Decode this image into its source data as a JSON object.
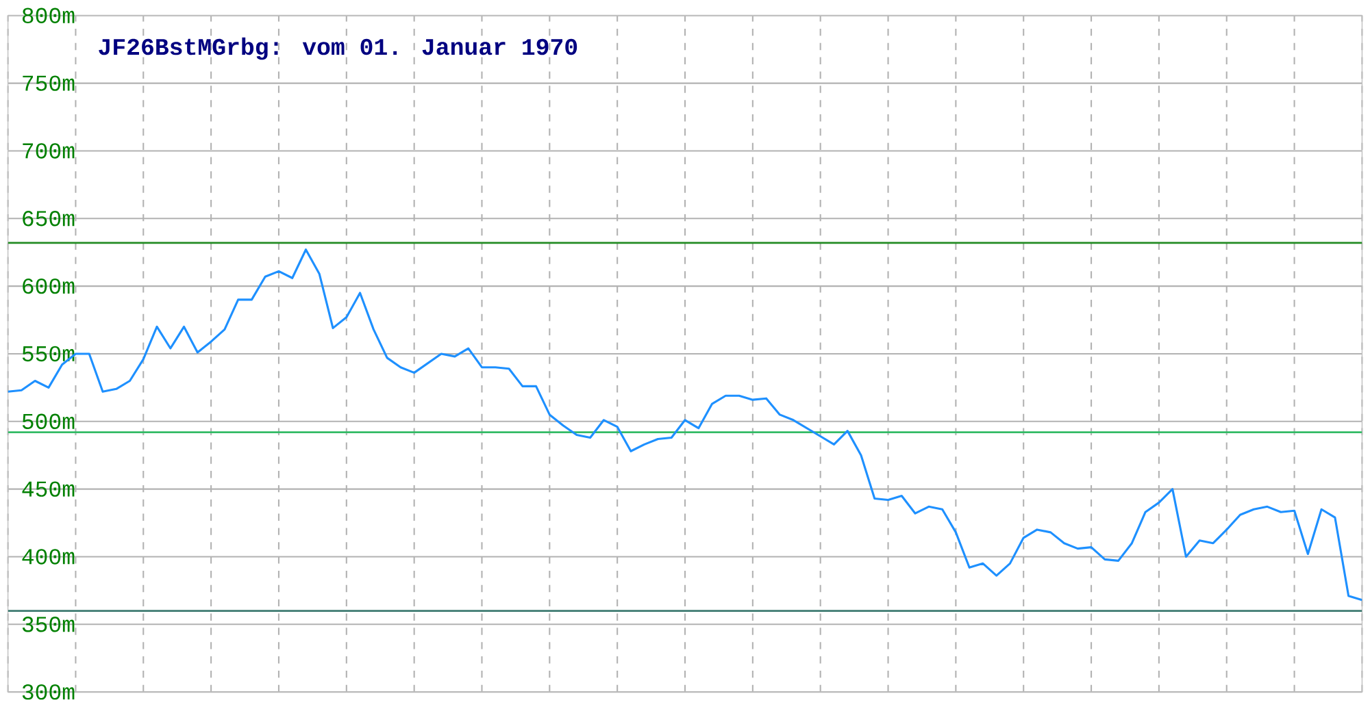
{
  "chart_data": {
    "type": "line",
    "title": "JF26BstMGrbg: vom 01. Januar 1970",
    "categories": [
      null,
      null,
      null,
      null,
      null,
      null,
      null,
      null,
      null,
      null,
      null,
      null,
      null,
      null,
      null,
      null,
      null,
      null,
      null,
      null,
      null,
      null,
      null,
      null,
      null,
      null,
      null,
      null,
      null,
      null,
      null,
      null,
      null,
      null,
      null,
      null,
      null,
      null,
      null,
      null,
      null,
      null,
      null,
      null,
      null,
      null,
      null,
      null,
      null,
      null,
      null,
      null,
      null,
      null,
      null,
      null,
      null,
      null,
      null,
      null,
      null,
      null,
      null,
      null,
      null,
      null,
      null,
      null,
      null,
      null,
      null,
      null,
      null,
      null,
      null,
      null,
      null,
      null,
      null,
      null,
      null,
      null,
      null,
      null,
      null,
      null,
      null,
      null,
      null,
      null,
      null,
      null,
      null,
      null,
      null,
      null,
      null,
      null,
      null,
      null,
      null
    ],
    "ylim": [
      300,
      800
    ],
    "yticks": [
      {
        "value": 300,
        "label": "300m"
      },
      {
        "value": 350,
        "label": "350m"
      },
      {
        "value": 400,
        "label": "400m"
      },
      {
        "value": 450,
        "label": "450m"
      },
      {
        "value": 500,
        "label": "500m"
      },
      {
        "value": 550,
        "label": "550m"
      },
      {
        "value": 600,
        "label": "600m"
      },
      {
        "value": 650,
        "label": "650m"
      },
      {
        "value": 700,
        "label": "700m"
      },
      {
        "value": 750,
        "label": "750m"
      },
      {
        "value": 800,
        "label": "800m"
      }
    ],
    "tick_labels": "y",
    "grid": true,
    "marker": "none",
    "line_style": "solid",
    "ref_lines": [
      {
        "axis": "y",
        "value": 632,
        "color": "#228b22"
      },
      {
        "axis": "y",
        "value": 492,
        "color": "#33bb66"
      },
      {
        "axis": "y",
        "value": 360,
        "color": "#3c7a70"
      }
    ],
    "series": [
      {
        "color": "#1e90ff",
        "values": [
          522,
          523,
          530,
          525,
          542,
          550,
          550,
          522,
          524,
          530,
          546,
          570,
          554,
          570,
          551,
          559,
          568,
          590,
          590,
          607,
          611,
          606,
          627,
          609,
          569,
          577,
          595,
          568,
          547,
          540,
          536,
          543,
          550,
          548,
          554,
          540,
          540,
          539,
          526,
          526,
          505,
          497,
          490,
          488,
          501,
          496,
          478,
          483,
          487,
          488,
          501,
          495,
          513,
          519,
          519,
          516,
          517,
          505,
          501,
          495,
          489,
          483,
          493,
          475,
          443,
          442,
          445,
          432,
          437,
          435,
          418,
          392,
          395,
          386,
          395,
          414,
          420,
          418,
          410,
          406,
          407,
          398,
          397,
          410,
          433,
          440,
          450,
          400,
          412,
          410,
          420,
          431,
          435,
          437,
          433,
          434,
          402,
          435,
          429,
          371,
          368
        ]
      }
    ]
  }
}
